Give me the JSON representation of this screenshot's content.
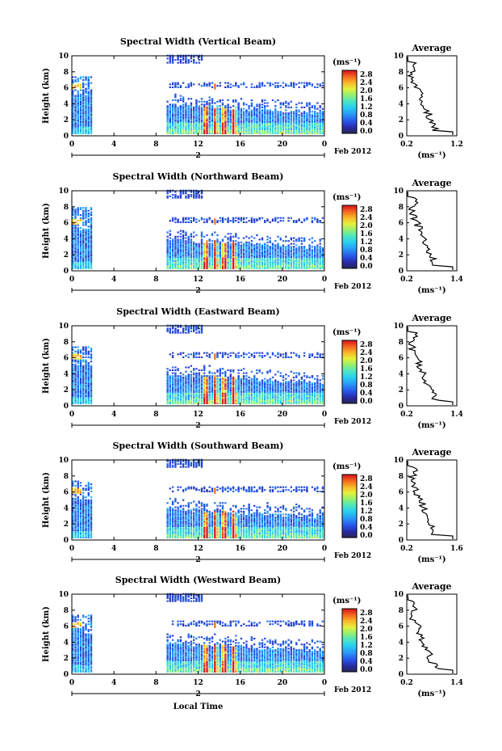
{
  "chart_data": [
    {
      "type": "heatmap",
      "title": "Spectral Width (Vertical Beam)",
      "ylabel": "Height (km)",
      "ylim": [
        0,
        10
      ],
      "yticks": [
        "0",
        "2",
        "4",
        "6",
        "8",
        "10"
      ],
      "xlim": [
        0,
        24
      ],
      "xticks": [
        "0",
        "4",
        "8",
        "12",
        "16",
        "20",
        "0"
      ],
      "day_marker": "2",
      "date_label": "Feb 2012",
      "colorbar": {
        "unit": "(ms⁻¹)",
        "range": [
          0,
          2.8
        ],
        "labels": [
          "2.8",
          "2.4",
          "2.0",
          "1.6",
          "1.2",
          "0.8",
          "0.4",
          "0.0"
        ]
      },
      "profile": {
        "title": "Average",
        "xlabel": "(ms⁻¹)",
        "xlim": [
          0.2,
          1.2
        ],
        "xticks": [
          "0.2",
          "1.2"
        ],
        "ylim": [
          0,
          10
        ],
        "yticks": [
          "0",
          "2",
          "4",
          "6",
          "8",
          "10"
        ]
      }
    },
    {
      "type": "heatmap",
      "title": "Spectral Width (Northward Beam)",
      "ylabel": "Height (km)",
      "ylim": [
        0,
        10
      ],
      "yticks": [
        "0",
        "2",
        "4",
        "6",
        "8",
        "10"
      ],
      "xlim": [
        0,
        24
      ],
      "xticks": [
        "0",
        "4",
        "8",
        "12",
        "16",
        "20",
        "0"
      ],
      "day_marker": "2",
      "date_label": "Feb 2012",
      "colorbar": {
        "unit": "(ms⁻¹)",
        "range": [
          0,
          2.8
        ],
        "labels": [
          "2.8",
          "2.4",
          "2.0",
          "1.6",
          "1.2",
          "0.8",
          "0.4",
          "0.0"
        ]
      },
      "profile": {
        "title": "Average",
        "xlabel": "(ms⁻¹)",
        "xlim": [
          0.2,
          1.4
        ],
        "xticks": [
          "0.2",
          "1.4"
        ],
        "ylim": [
          0,
          10
        ],
        "yticks": [
          "0",
          "2",
          "4",
          "6",
          "8",
          "10"
        ]
      }
    },
    {
      "type": "heatmap",
      "title": "Spectral Width (Eastward Beam)",
      "ylabel": "Height (km)",
      "ylim": [
        0,
        10
      ],
      "yticks": [
        "0",
        "2",
        "4",
        "6",
        "8",
        "10"
      ],
      "xlim": [
        0,
        24
      ],
      "xticks": [
        "0",
        "4",
        "8",
        "12",
        "16",
        "20",
        "0"
      ],
      "day_marker": "2",
      "date_label": "Feb 2012",
      "colorbar": {
        "unit": "(ms⁻¹)",
        "range": [
          0,
          2.8
        ],
        "labels": [
          "2.8",
          "2.4",
          "2.0",
          "1.6",
          "1.2",
          "0.8",
          "0.4",
          "0.0"
        ]
      },
      "profile": {
        "title": "Average",
        "xlabel": "(ms⁻¹)",
        "xlim": [
          0.2,
          1.4
        ],
        "xticks": [
          "0.2",
          "1.4"
        ],
        "ylim": [
          0,
          10
        ],
        "yticks": [
          "0",
          "2",
          "4",
          "6",
          "8",
          "10"
        ]
      }
    },
    {
      "type": "heatmap",
      "title": "Spectral Width (Southward Beam)",
      "ylabel": "Height (km)",
      "ylim": [
        0,
        10
      ],
      "yticks": [
        "0",
        "2",
        "4",
        "6",
        "8",
        "10"
      ],
      "xlim": [
        0,
        24
      ],
      "xticks": [
        "0",
        "4",
        "8",
        "12",
        "16",
        "20",
        "0"
      ],
      "day_marker": "2",
      "date_label": "Feb 2012",
      "colorbar": {
        "unit": "(ms⁻¹)",
        "range": [
          0,
          2.8
        ],
        "labels": [
          "2.8",
          "2.4",
          "2.0",
          "1.6",
          "1.2",
          "0.8",
          "0.4",
          "0.0"
        ]
      },
      "profile": {
        "title": "Average",
        "xlabel": "(ms⁻¹)",
        "xlim": [
          0.2,
          1.6
        ],
        "xticks": [
          "0.2",
          "1.6"
        ],
        "ylim": [
          0,
          10
        ],
        "yticks": [
          "0",
          "2",
          "4",
          "6",
          "8",
          "10"
        ]
      }
    },
    {
      "type": "heatmap",
      "title": "Spectral Width (Westward Beam)",
      "ylabel": "Height (km)",
      "ylim": [
        0,
        10
      ],
      "yticks": [
        "0",
        "2",
        "4",
        "6",
        "8",
        "10"
      ],
      "xlim": [
        0,
        24
      ],
      "xticks": [
        "0",
        "4",
        "8",
        "12",
        "16",
        "20",
        "0"
      ],
      "day_marker": "2",
      "date_label": "Feb 2012",
      "xlabel": "Local Time",
      "colorbar": {
        "unit": "(ms⁻¹)",
        "range": [
          0,
          2.8
        ],
        "labels": [
          "2.8",
          "2.4",
          "2.0",
          "1.6",
          "1.2",
          "0.8",
          "0.4",
          "0.0"
        ]
      },
      "profile": {
        "title": "Average",
        "xlabel": "(ms⁻¹)",
        "xlim": [
          0.2,
          1.4
        ],
        "xticks": [
          "0.2",
          "1.4"
        ],
        "ylim": [
          0,
          10
        ],
        "yticks": [
          "0",
          "2",
          "4",
          "6",
          "8",
          "10"
        ]
      }
    }
  ]
}
